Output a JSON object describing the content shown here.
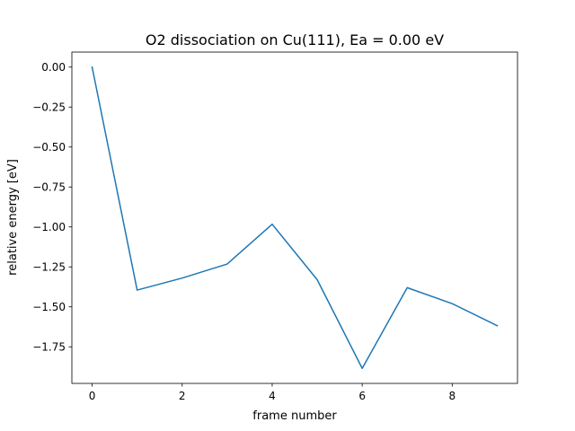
{
  "chart_data": {
    "type": "line",
    "title": "O2 dissociation on Cu(111), Ea = 0.00 eV",
    "xlabel": "frame number",
    "ylabel": "relative energy [eV]",
    "x": [
      0,
      1,
      2,
      3,
      4,
      5,
      6,
      7,
      8,
      9
    ],
    "series": [
      {
        "values": [
          0.0,
          -1.395,
          -1.32,
          -1.232,
          -0.983,
          -1.33,
          -1.885,
          -1.38,
          -1.48,
          -1.618
        ],
        "color": "#1f77b4"
      }
    ],
    "xticks": [
      0,
      2,
      4,
      6,
      8
    ],
    "xtick_labels": [
      "0",
      "2",
      "4",
      "6",
      "8"
    ],
    "yticks": [
      0.0,
      -0.25,
      -0.5,
      -0.75,
      -1.0,
      -1.25,
      -1.5,
      -1.75
    ],
    "ytick_labels": [
      "0.00",
      "−0.25",
      "−0.50",
      "−0.75",
      "−1.00",
      "−1.25",
      "−1.50",
      "−1.75"
    ],
    "xlim": [
      -0.45,
      9.45
    ],
    "ylim": [
      -1.979,
      0.094
    ],
    "grid": false,
    "legend": "none"
  }
}
